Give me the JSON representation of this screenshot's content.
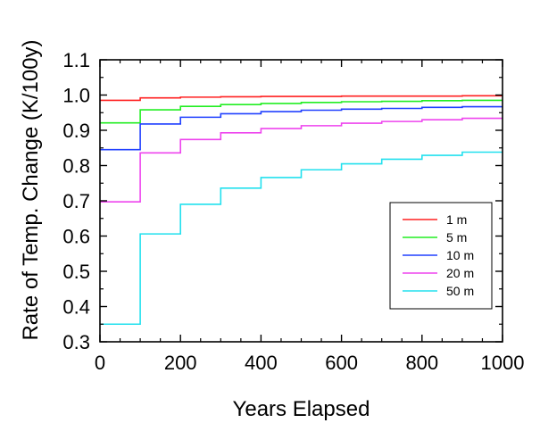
{
  "chart_data": {
    "type": "line",
    "title": "",
    "xlabel": "Years Elapsed",
    "ylabel": "Rate of Temp. Change (K/100y)",
    "xlim": [
      0,
      1000
    ],
    "ylim": [
      0.3,
      1.1
    ],
    "x_ticks": [
      0,
      200,
      400,
      600,
      800,
      1000
    ],
    "x_tick_labels": [
      "0",
      "200",
      "400",
      "600",
      "800",
      "1000"
    ],
    "y_ticks": [
      0.3,
      0.4,
      0.5,
      0.6,
      0.7,
      0.8,
      0.9,
      1.0,
      1.1
    ],
    "y_tick_labels": [
      "0.3",
      "0.4",
      "0.5",
      "0.6",
      "0.7",
      "0.8",
      "0.9",
      "1.0",
      "1.1"
    ],
    "step_style": "post",
    "grid": false,
    "legend_position": "bottom-right",
    "x": [
      0,
      100,
      200,
      300,
      400,
      500,
      600,
      700,
      800,
      900,
      1000
    ],
    "series": [
      {
        "name": "1 m",
        "color": "#ff2020",
        "values": [
          0.985,
          0.992,
          0.994,
          0.995,
          0.996,
          0.996,
          0.997,
          0.997,
          0.997,
          0.998,
          0.998
        ]
      },
      {
        "name": "5 m",
        "color": "#22ee22",
        "values": [
          0.921,
          0.958,
          0.968,
          0.973,
          0.976,
          0.979,
          0.981,
          0.982,
          0.984,
          0.985,
          0.985
        ]
      },
      {
        "name": "10 m",
        "color": "#2040ff",
        "values": [
          0.845,
          0.918,
          0.937,
          0.947,
          0.953,
          0.957,
          0.96,
          0.962,
          0.965,
          0.967,
          0.967
        ]
      },
      {
        "name": "20 m",
        "color": "#ee44ee",
        "values": [
          0.697,
          0.836,
          0.874,
          0.893,
          0.905,
          0.913,
          0.92,
          0.925,
          0.93,
          0.934,
          0.934
        ]
      },
      {
        "name": "50 m",
        "color": "#22e0ee",
        "values": [
          0.35,
          0.606,
          0.69,
          0.736,
          0.766,
          0.788,
          0.805,
          0.818,
          0.829,
          0.838,
          0.838
        ]
      }
    ]
  }
}
